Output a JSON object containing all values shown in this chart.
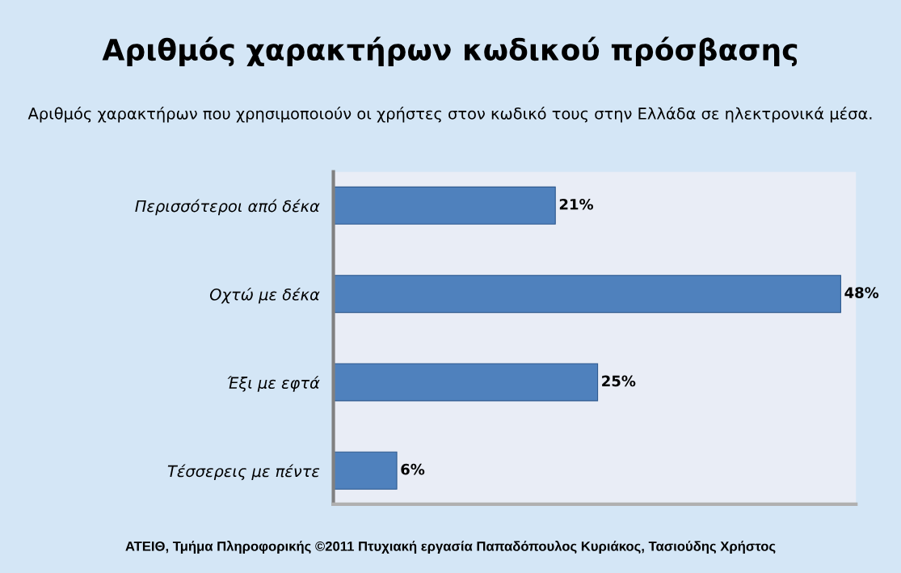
{
  "chart_data": {
    "type": "bar",
    "orientation": "horizontal",
    "title": "Αριθμός χαρακτήρων κωδικού πρόσβασης",
    "subtitle": "Αριθμός χαρακτήρων που χρησιμοποιούν οι χρήστες στον κωδικό τους στην Ελλάδα σε ηλεκτρονικά μέσα.",
    "categories": [
      "Περισσότεροι από δέκα",
      "Οχτώ με δέκα",
      "Έξι με εφτά",
      "Τέσσερεις με πέντε"
    ],
    "values": [
      21,
      48,
      25,
      6
    ],
    "value_labels": [
      "21%",
      "48%",
      "25%",
      "6%"
    ],
    "color": "#4f81bd",
    "annotations": [
      "ΑΤΕΙΘ, Τμήμα Πληροφορικής ©2011 Πτυχιακή εργασία Παπαδόπουλος Κυριάκος, Τασιούδης Χρήστος"
    ]
  }
}
